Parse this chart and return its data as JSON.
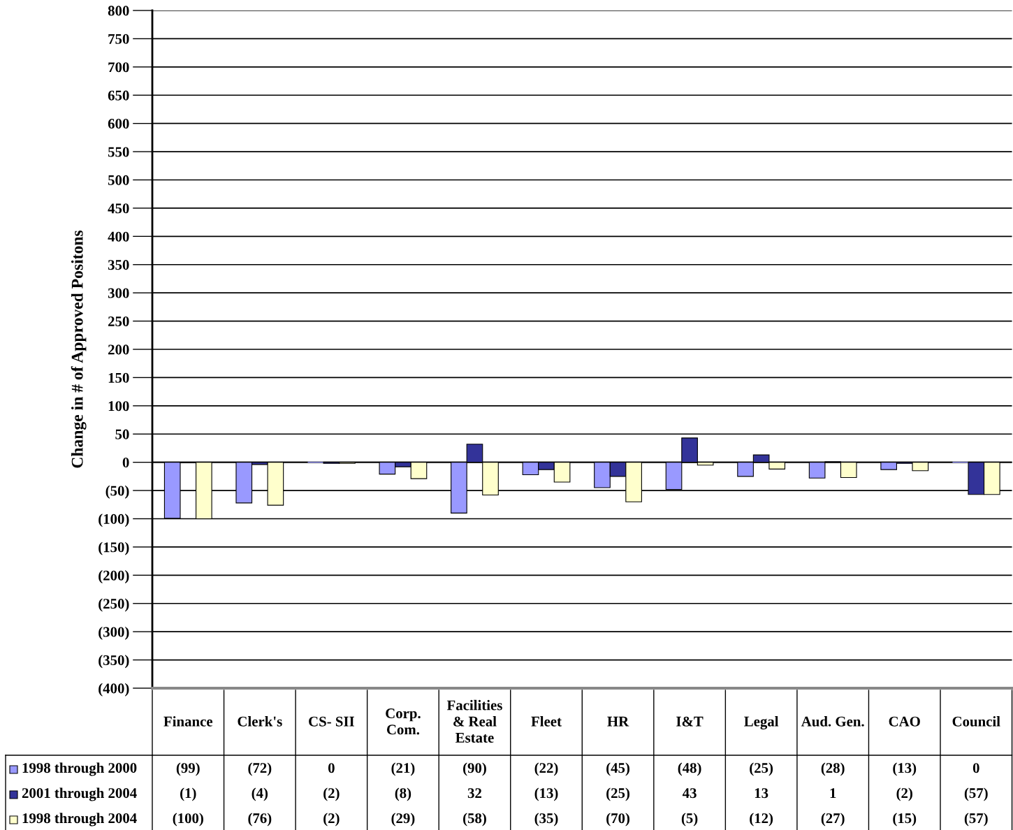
{
  "chart_data": {
    "type": "bar",
    "ylabel": "Change in # of Approved Positons",
    "categories": [
      "Finance",
      "Clerk's",
      "CS- SII",
      "Corp.\nCom.",
      "Facilities\n& Real\nEstate",
      "Fleet",
      "HR",
      "I&T",
      "Legal",
      "Aud. Gen.",
      "CAO",
      "Council"
    ],
    "series": [
      {
        "name": "1998 through 2000",
        "color": "#9999ff",
        "values": [
          -99,
          -72,
          0,
          -21,
          -90,
          -22,
          -45,
          -48,
          -25,
          -28,
          -13,
          0
        ],
        "value_labels": [
          "(99)",
          "(72)",
          "0",
          "(21)",
          "(90)",
          "(22)",
          "(45)",
          "(48)",
          "(25)",
          "(28)",
          "(13)",
          "0"
        ]
      },
      {
        "name": "2001 through 2004",
        "color": "#333399",
        "values": [
          -1,
          -4,
          -2,
          -8,
          32,
          -13,
          -25,
          43,
          13,
          1,
          -2,
          -57
        ],
        "value_labels": [
          "(1)",
          "(4)",
          "(2)",
          "(8)",
          "32",
          "(13)",
          "(25)",
          "43",
          "13",
          "1",
          "(2)",
          "(57)"
        ]
      },
      {
        "name": "1998 through 2004",
        "color": "#ffffcc",
        "values": [
          -100,
          -76,
          -2,
          -29,
          -58,
          -35,
          -70,
          -5,
          -12,
          -27,
          -15,
          -57
        ],
        "value_labels": [
          "(100)",
          "(76)",
          "(2)",
          "(29)",
          "(58)",
          "(35)",
          "(70)",
          "(5)",
          "(12)",
          "(27)",
          "(15)",
          "(57)"
        ]
      }
    ],
    "ylim": [
      -400,
      800
    ],
    "yticks": [
      {
        "value": -400,
        "label": "(400)"
      },
      {
        "value": -350,
        "label": "(350)"
      },
      {
        "value": -300,
        "label": "(300)"
      },
      {
        "value": -250,
        "label": "(250)"
      },
      {
        "value": -200,
        "label": "(200)"
      },
      {
        "value": -150,
        "label": "(150)"
      },
      {
        "value": -100,
        "label": "(100)"
      },
      {
        "value": -50,
        "label": "(50)"
      },
      0,
      50,
      100,
      150,
      200,
      250,
      300,
      350,
      400,
      450,
      500,
      550,
      600,
      650,
      700,
      750,
      800
    ],
    "grid": "y",
    "legend": "bottom left"
  }
}
